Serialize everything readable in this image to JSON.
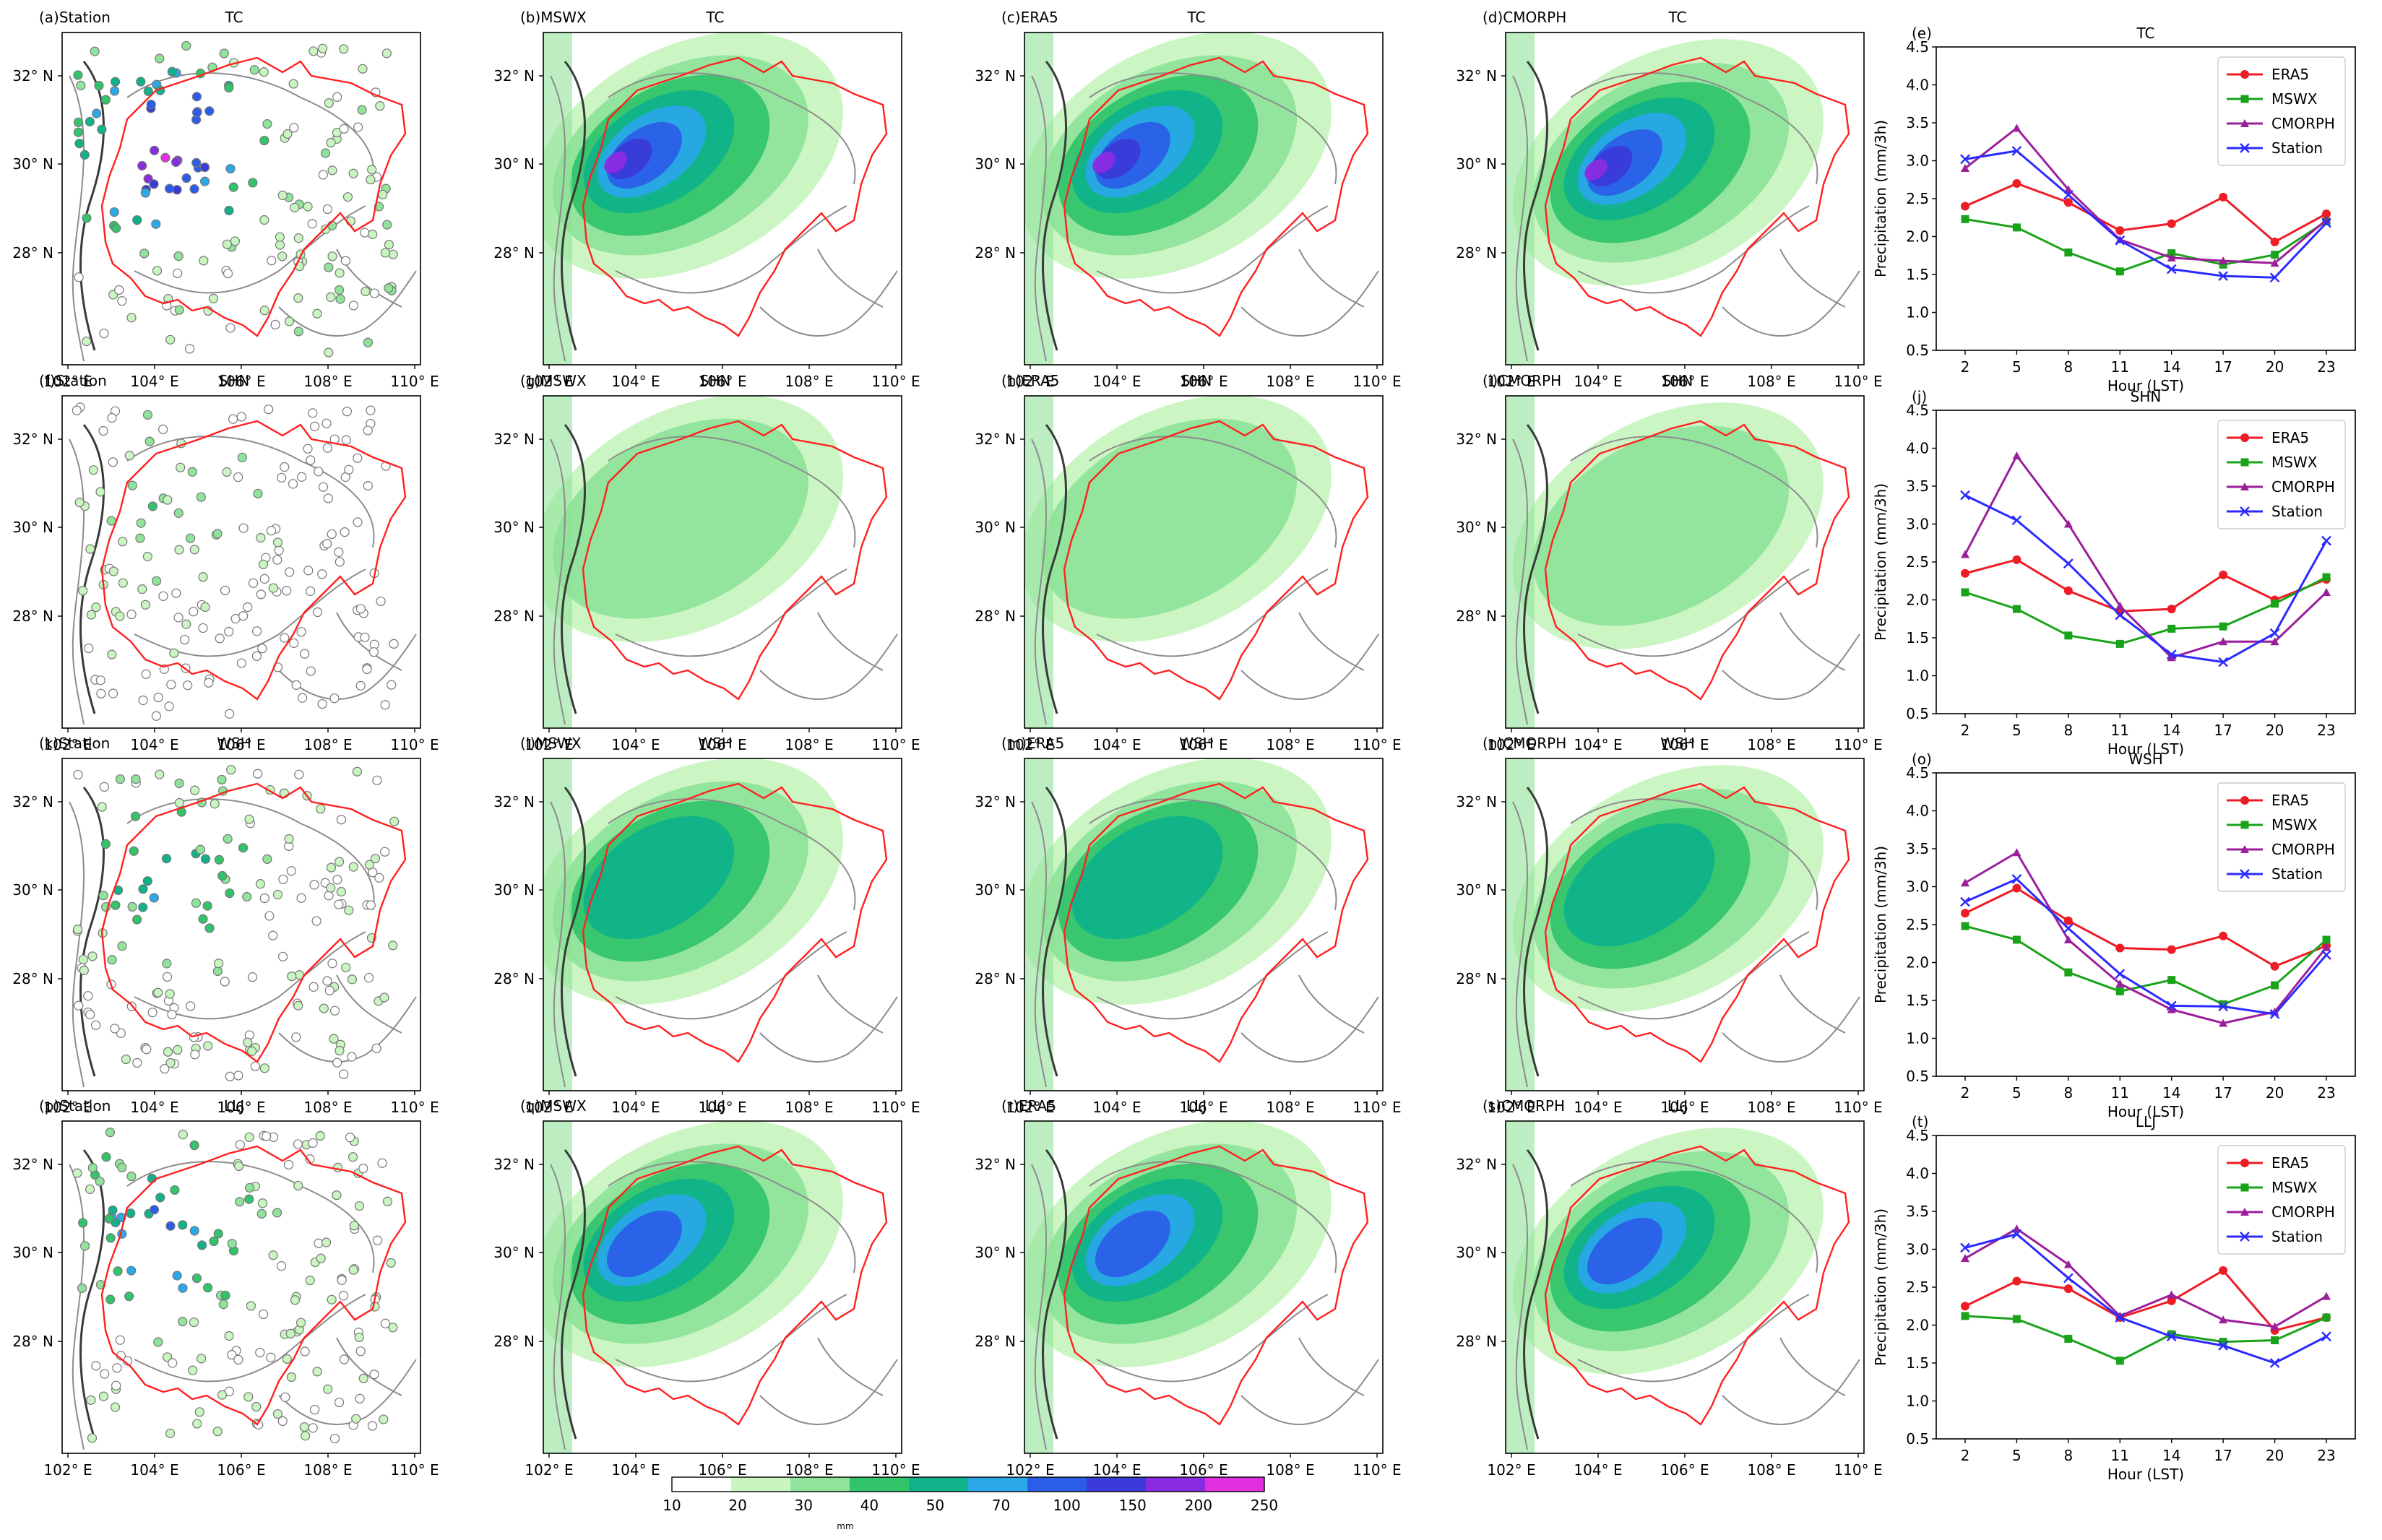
{
  "columns": [
    {
      "label": "Station",
      "kind": "station"
    },
    {
      "label": "MSWX",
      "kind": "field"
    },
    {
      "label": "ERA5",
      "kind": "field"
    },
    {
      "label": "CMORPH",
      "kind": "field"
    }
  ],
  "rows": [
    {
      "type": "TC",
      "letters": [
        "(a)",
        "(b)",
        "(c)",
        "(d)",
        "(e)"
      ],
      "intensity": 1.0
    },
    {
      "type": "SHN",
      "letters": [
        "(f)",
        "(g)",
        "(h)",
        "(i)",
        "(j)"
      ],
      "intensity": 0.25
    },
    {
      "type": "WSH",
      "letters": [
        "(k)",
        "(l)",
        "(m)",
        "(n)",
        "(o)"
      ],
      "intensity": 0.5
    },
    {
      "type": "LLJ",
      "letters": [
        "(p)",
        "(q)",
        "(r)",
        "(s)",
        "(t)"
      ],
      "intensity": 0.7
    }
  ],
  "map_axes": {
    "x_ticks": [
      "102° E",
      "104° E",
      "106° E",
      "108° E",
      "110° E"
    ],
    "y_ticks": [
      "32° N",
      "30° N",
      "28° N"
    ],
    "colors": {
      "basin_boundary": "#ff2020",
      "terrain_contour": "#8c8c8c",
      "terrain_contour_dark": "#3a3a3a"
    }
  },
  "colorbar": {
    "ticks": [
      "10",
      "20",
      "30",
      "40",
      "50",
      "70",
      "100",
      "150",
      "200",
      "250"
    ],
    "unit": "mm",
    "colors": [
      "#ffffff",
      "#c8f5c0",
      "#8fe39a",
      "#33c46b",
      "#0fb28a",
      "#2aa8e8",
      "#2a5ee8",
      "#3a3ad8",
      "#8a2be2",
      "#e030e0"
    ]
  },
  "chart_data": [
    {
      "type": "line",
      "title": "TC",
      "panel": "(e)",
      "xlabel": "Hour (LST)",
      "ylabel": "Precipitation (mm/3h)",
      "x": [
        2,
        5,
        8,
        11,
        14,
        17,
        20,
        23
      ],
      "ylim": [
        0.5,
        4.5
      ],
      "yticks": [
        0.5,
        1.0,
        1.5,
        2.0,
        2.5,
        3.0,
        3.5,
        4.0,
        4.5
      ],
      "legend": "top-right",
      "series": [
        {
          "name": "ERA5",
          "color": "#ee1c25",
          "marker": "circle",
          "values": [
            2.4,
            2.7,
            2.45,
            2.08,
            2.17,
            2.52,
            1.93,
            2.3
          ]
        },
        {
          "name": "MSWX",
          "color": "#1aa31a",
          "marker": "square",
          "values": [
            2.23,
            2.12,
            1.79,
            1.54,
            1.78,
            1.63,
            1.76,
            2.2
          ]
        },
        {
          "name": "CMORPH",
          "color": "#9b1f9b",
          "marker": "triangle",
          "values": [
            2.9,
            3.43,
            2.62,
            1.96,
            1.72,
            1.68,
            1.65,
            2.22
          ]
        },
        {
          "name": "Station",
          "color": "#2b2bff",
          "marker": "x",
          "values": [
            3.02,
            3.13,
            2.55,
            1.95,
            1.57,
            1.48,
            1.46,
            2.18
          ]
        }
      ]
    },
    {
      "type": "line",
      "title": "SHN",
      "panel": "(j)",
      "xlabel": "Hour (LST)",
      "ylabel": "Precipitation (mm/3h)",
      "x": [
        2,
        5,
        8,
        11,
        14,
        17,
        20,
        23
      ],
      "ylim": [
        0.5,
        4.5
      ],
      "yticks": [
        0.5,
        1.0,
        1.5,
        2.0,
        2.5,
        3.0,
        3.5,
        4.0,
        4.5
      ],
      "legend": "top-right",
      "series": [
        {
          "name": "ERA5",
          "color": "#ee1c25",
          "marker": "circle",
          "values": [
            2.35,
            2.53,
            2.12,
            1.85,
            1.88,
            2.33,
            2.0,
            2.27
          ]
        },
        {
          "name": "MSWX",
          "color": "#1aa31a",
          "marker": "square",
          "values": [
            2.1,
            1.88,
            1.53,
            1.42,
            1.62,
            1.65,
            1.95,
            2.3
          ]
        },
        {
          "name": "CMORPH",
          "color": "#9b1f9b",
          "marker": "triangle",
          "values": [
            2.6,
            3.9,
            3.0,
            1.92,
            1.24,
            1.45,
            1.45,
            2.1
          ]
        },
        {
          "name": "Station",
          "color": "#2b2bff",
          "marker": "x",
          "values": [
            3.38,
            3.05,
            2.48,
            1.8,
            1.28,
            1.18,
            1.56,
            2.78
          ]
        }
      ]
    },
    {
      "type": "line",
      "title": "WSH",
      "panel": "(o)",
      "xlabel": "Hour (LST)",
      "ylabel": "Precipitation (mm/3h)",
      "x": [
        2,
        5,
        8,
        11,
        14,
        17,
        20,
        23
      ],
      "ylim": [
        0.5,
        4.5
      ],
      "yticks": [
        0.5,
        1.0,
        1.5,
        2.0,
        2.5,
        3.0,
        3.5,
        4.0,
        4.5
      ],
      "legend": "top-right",
      "series": [
        {
          "name": "ERA5",
          "color": "#ee1c25",
          "marker": "circle",
          "values": [
            2.65,
            2.98,
            2.55,
            2.19,
            2.17,
            2.35,
            1.95,
            2.22
          ]
        },
        {
          "name": "MSWX",
          "color": "#1aa31a",
          "marker": "square",
          "values": [
            2.48,
            2.3,
            1.87,
            1.62,
            1.77,
            1.45,
            1.7,
            2.3
          ]
        },
        {
          "name": "CMORPH",
          "color": "#9b1f9b",
          "marker": "triangle",
          "values": [
            3.05,
            3.45,
            2.3,
            1.72,
            1.38,
            1.2,
            1.35,
            2.2
          ]
        },
        {
          "name": "Station",
          "color": "#2b2bff",
          "marker": "x",
          "values": [
            2.8,
            3.1,
            2.45,
            1.85,
            1.43,
            1.42,
            1.32,
            2.1
          ]
        }
      ]
    },
    {
      "type": "line",
      "title": "LLJ",
      "panel": "(t)",
      "xlabel": "Hour (LST)",
      "ylabel": "Precipitation (mm/3h)",
      "x": [
        2,
        5,
        8,
        11,
        14,
        17,
        20,
        23
      ],
      "ylim": [
        0.5,
        4.5
      ],
      "yticks": [
        0.5,
        1.0,
        1.5,
        2.0,
        2.5,
        3.0,
        3.5,
        4.0,
        4.5
      ],
      "legend": "top-right",
      "series": [
        {
          "name": "ERA5",
          "color": "#ee1c25",
          "marker": "circle",
          "values": [
            2.25,
            2.58,
            2.48,
            2.1,
            2.32,
            2.72,
            1.93,
            2.1
          ]
        },
        {
          "name": "MSWX",
          "color": "#1aa31a",
          "marker": "square",
          "values": [
            2.12,
            2.08,
            1.82,
            1.53,
            1.88,
            1.78,
            1.8,
            2.1
          ]
        },
        {
          "name": "CMORPH",
          "color": "#9b1f9b",
          "marker": "triangle",
          "values": [
            2.88,
            3.27,
            2.8,
            2.12,
            2.4,
            2.07,
            1.98,
            2.38
          ]
        },
        {
          "name": "Station",
          "color": "#2b2bff",
          "marker": "x",
          "values": [
            3.02,
            3.2,
            2.62,
            2.1,
            1.85,
            1.73,
            1.5,
            1.85
          ]
        }
      ]
    }
  ]
}
